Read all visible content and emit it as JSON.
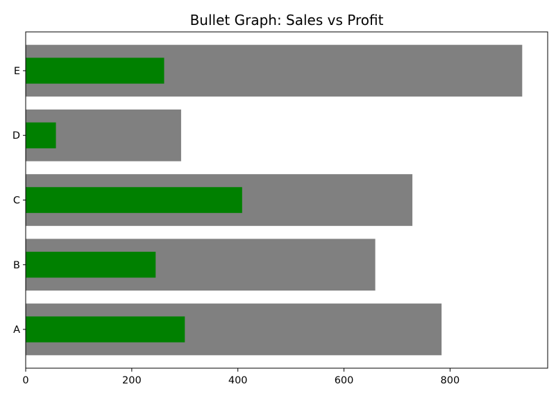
{
  "chart_data": {
    "type": "bar",
    "orientation": "horizontal",
    "title": "Bullet Graph: Sales vs Profit",
    "xlabel": "",
    "ylabel": "",
    "categories": [
      "A",
      "B",
      "C",
      "D",
      "E"
    ],
    "series": [
      {
        "role": "sales",
        "values": [
          784,
          659,
          729,
          293,
          936
        ],
        "color": "#808080"
      },
      {
        "role": "profit",
        "values": [
          300,
          245,
          408,
          57,
          261
        ],
        "color": "#008000"
      }
    ],
    "xlim": [
      0,
      984
    ],
    "xticks": [
      0,
      200,
      400,
      600,
      800
    ],
    "grid": false,
    "legend": "none"
  }
}
